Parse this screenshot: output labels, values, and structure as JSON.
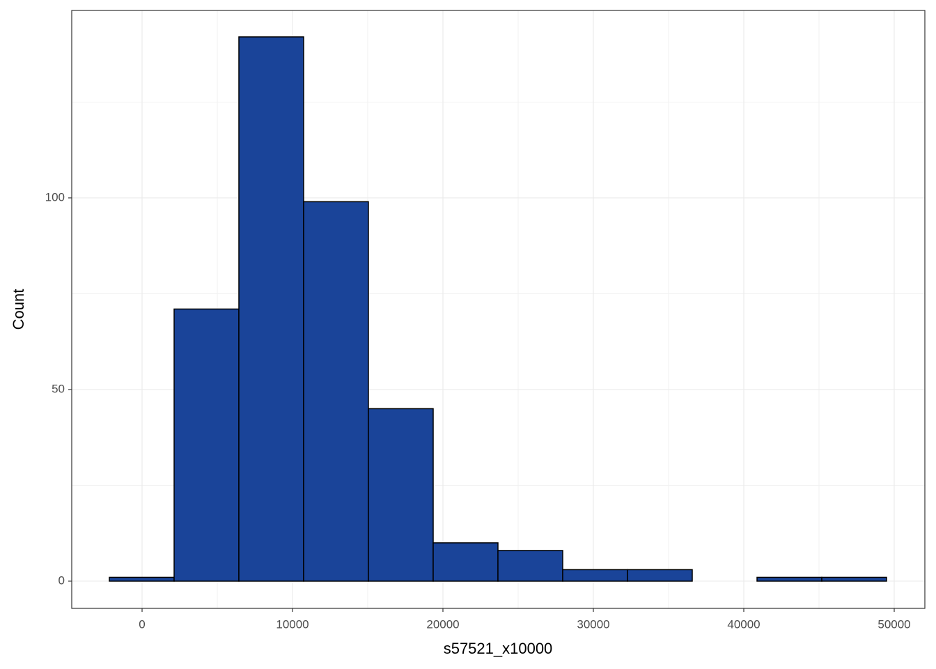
{
  "chart_data": {
    "type": "histogram",
    "x_label": "s57521_x10000",
    "y_label": "Count",
    "bins": [
      -2176,
      2130,
      6435,
      10741,
      15046,
      19352,
      23658,
      27963,
      32269,
      36574,
      40880,
      45186,
      49491
    ],
    "values": [
      1,
      71,
      142,
      99,
      45,
      10,
      8,
      3,
      3,
      0,
      1,
      1
    ],
    "color": "#1a4499",
    "xlim": [
      -4676,
      52037
    ],
    "ylim": [
      -7.1,
      148.9
    ],
    "xticks": [
      0,
      10000,
      20000,
      30000,
      40000,
      50000
    ],
    "yticks": [
      0,
      50,
      100
    ],
    "grid": true
  }
}
